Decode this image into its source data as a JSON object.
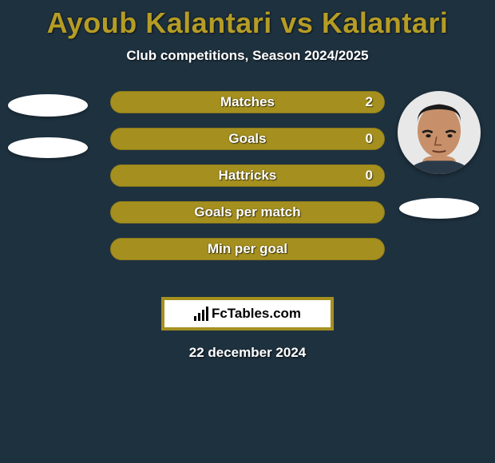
{
  "colors": {
    "background": "#1e313f",
    "title": "#b59c24",
    "subtitle": "#ffffff",
    "bar_fill": "#a5901f",
    "bar_border": "#8b7a1a",
    "bar_track": "#a5901f",
    "brand_border": "#a5901f",
    "text_white": "#ffffff"
  },
  "title": "Ayoub Kalantari vs Kalantari",
  "subtitle": "Club competitions, Season 2024/2025",
  "bars": [
    {
      "label": "Matches",
      "value": "2",
      "fill_pct": 100
    },
    {
      "label": "Goals",
      "value": "0",
      "fill_pct": 100
    },
    {
      "label": "Hattricks",
      "value": "0",
      "fill_pct": 100
    },
    {
      "label": "Goals per match",
      "value": "",
      "fill_pct": 97
    },
    {
      "label": "Min per goal",
      "value": "",
      "fill_pct": 97
    }
  ],
  "brand": "FcTables.com",
  "date": "22 december 2024",
  "avatar_right": {
    "skin": "#c8906a",
    "hair": "#1a1a1a",
    "bg": "#e8e8e8"
  }
}
